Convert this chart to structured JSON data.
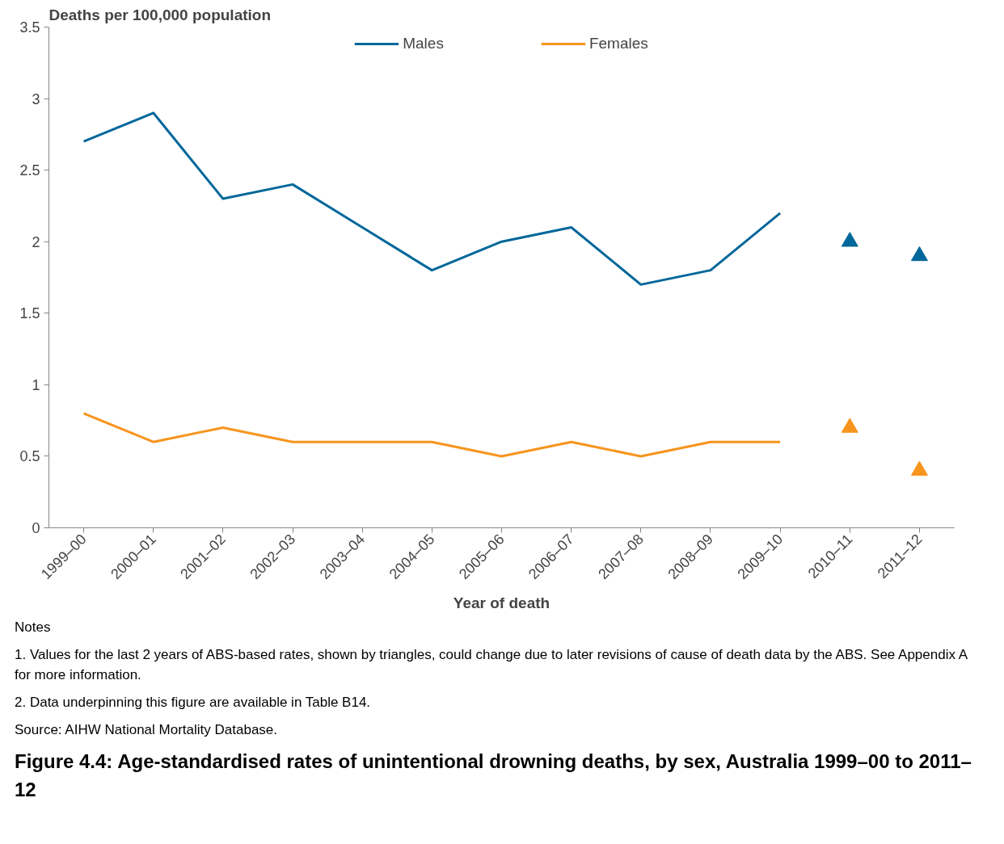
{
  "chart_data": {
    "type": "line",
    "title": "Figure 4.4: Age-standardised rates of unintentional drowning deaths, by sex, Australia 1999–00 to 2011–12",
    "ylabel": "Deaths per 100,000 population",
    "xlabel": "Year of death",
    "categories": [
      "1999–00",
      "2000–01",
      "2001–02",
      "2002–03",
      "2003–04",
      "2004–05",
      "2005–06",
      "2006–07",
      "2007–08",
      "2008–09",
      "2009–10",
      "2010–11",
      "2011–12"
    ],
    "series": [
      {
        "name": "Males",
        "color": "#00679a",
        "values": [
          2.7,
          2.9,
          2.3,
          2.4,
          2.1,
          1.8,
          2.0,
          2.1,
          1.7,
          1.8,
          2.2,
          null,
          null
        ]
      },
      {
        "name": "Females",
        "color": "#f7941d",
        "values": [
          0.8,
          0.6,
          0.7,
          0.6,
          0.6,
          0.6,
          0.5,
          0.6,
          0.5,
          0.6,
          0.6,
          null,
          null
        ]
      },
      {
        "type": "scatter",
        "marker": "triangle",
        "color": "#00679a",
        "values": [
          null,
          null,
          null,
          null,
          null,
          null,
          null,
          null,
          null,
          null,
          null,
          2.0,
          1.9
        ]
      },
      {
        "type": "scatter",
        "marker": "triangle",
        "color": "#f7941d",
        "values": [
          null,
          null,
          null,
          null,
          null,
          null,
          null,
          null,
          null,
          null,
          null,
          0.7,
          0.4
        ]
      }
    ],
    "ylim": [
      0,
      3.5
    ],
    "yticks": [
      0,
      0.5,
      1,
      1.5,
      2,
      2.5,
      3,
      3.5
    ],
    "grid": false,
    "legend": "top",
    "annotations": [
      "Notes",
      "1.   Values for the last 2 years of ABS-based rates, shown by triangles, could change due to later revisions of cause of death data by the ABS. See Appendix A for more information.",
      "2.   Data underpinning this figure are available in Table B14.",
      "Source: AIHW National Mortality Database."
    ]
  }
}
